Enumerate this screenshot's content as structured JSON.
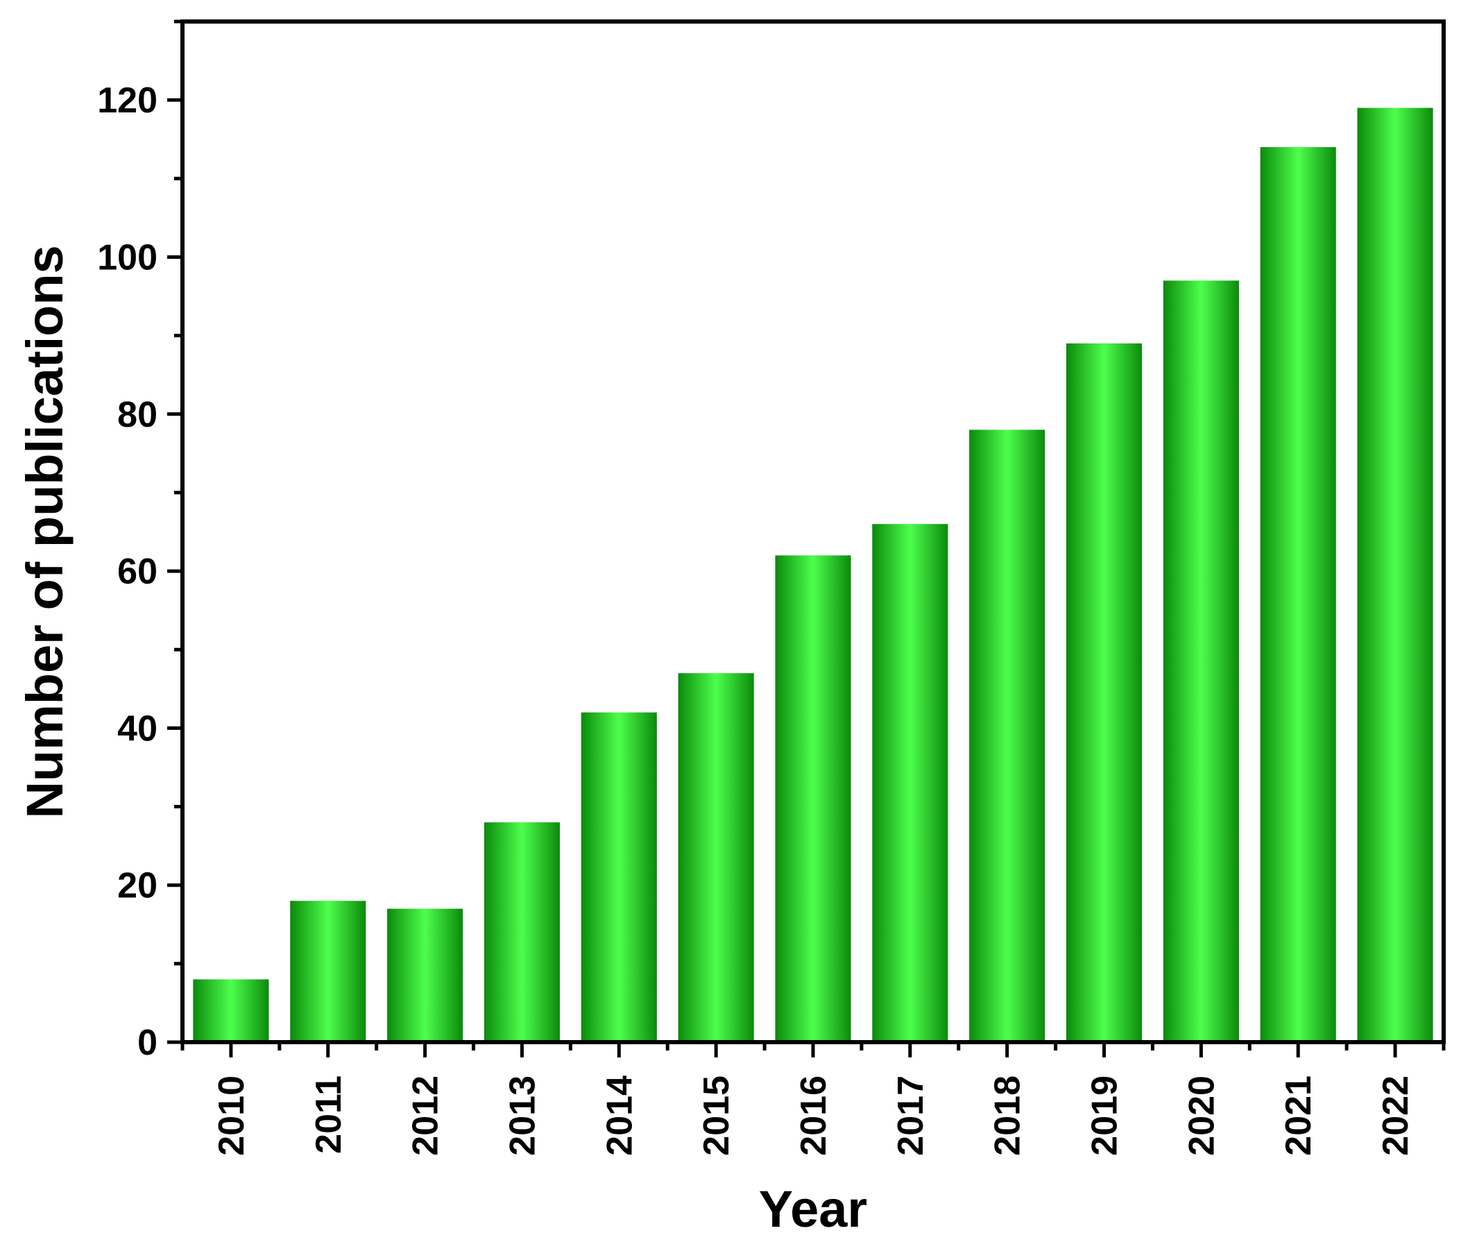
{
  "chart_data": {
    "type": "bar",
    "title": "",
    "xlabel": "Year",
    "ylabel": "Number of publications",
    "categories": [
      "2010",
      "2011",
      "2012",
      "2013",
      "2014",
      "2015",
      "2016",
      "2017",
      "2018",
      "2019",
      "2020",
      "2021",
      "2022"
    ],
    "values": [
      8,
      18,
      17,
      28,
      42,
      47,
      62,
      66,
      78,
      89,
      97,
      114,
      119
    ],
    "ylim": [
      0,
      130
    ],
    "yticks": [
      0,
      20,
      40,
      60,
      80,
      100,
      120
    ],
    "grid": false,
    "legend": "none",
    "colors": {
      "bar_center": "#4dff4d",
      "bar_edge": "#0b8a0b",
      "axis": "#000000"
    }
  }
}
